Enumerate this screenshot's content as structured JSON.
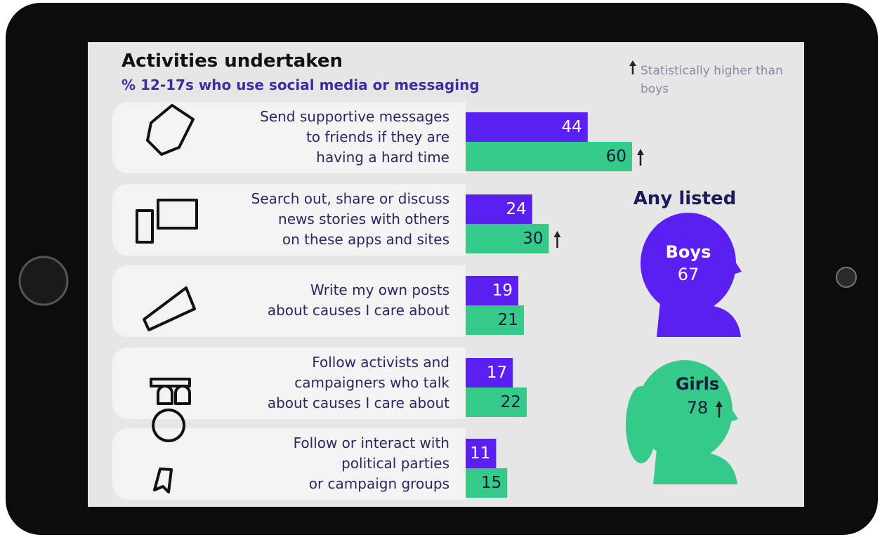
{
  "chart_data": {
    "type": "bar",
    "title": "Activities undertaken",
    "subtitle": "% 12-17s who use social media or messaging",
    "note": "Statistically higher than boys",
    "categories": [
      "Send supportive messages\nto friends if they are\nhaving a hard time",
      "Search out, share or discuss\nnews stories with others\non these apps and sites",
      "Write my own posts\nabout causes I care about",
      "Follow activists and\ncampaigners who talk\nabout causes I care about",
      "Follow or interact with\npolitical parties\nor campaign groups"
    ],
    "series": [
      {
        "name": "Boys",
        "color": "#5b1ff2",
        "values": [
          44,
          24,
          19,
          17,
          11
        ],
        "total": 67
      },
      {
        "name": "Girls",
        "color": "#35c98a",
        "values": [
          60,
          30,
          21,
          22,
          15
        ],
        "total": 78,
        "higher": [
          true,
          true,
          false,
          false,
          false
        ],
        "total_higher": true
      }
    ],
    "total_title": "Any listed"
  }
}
